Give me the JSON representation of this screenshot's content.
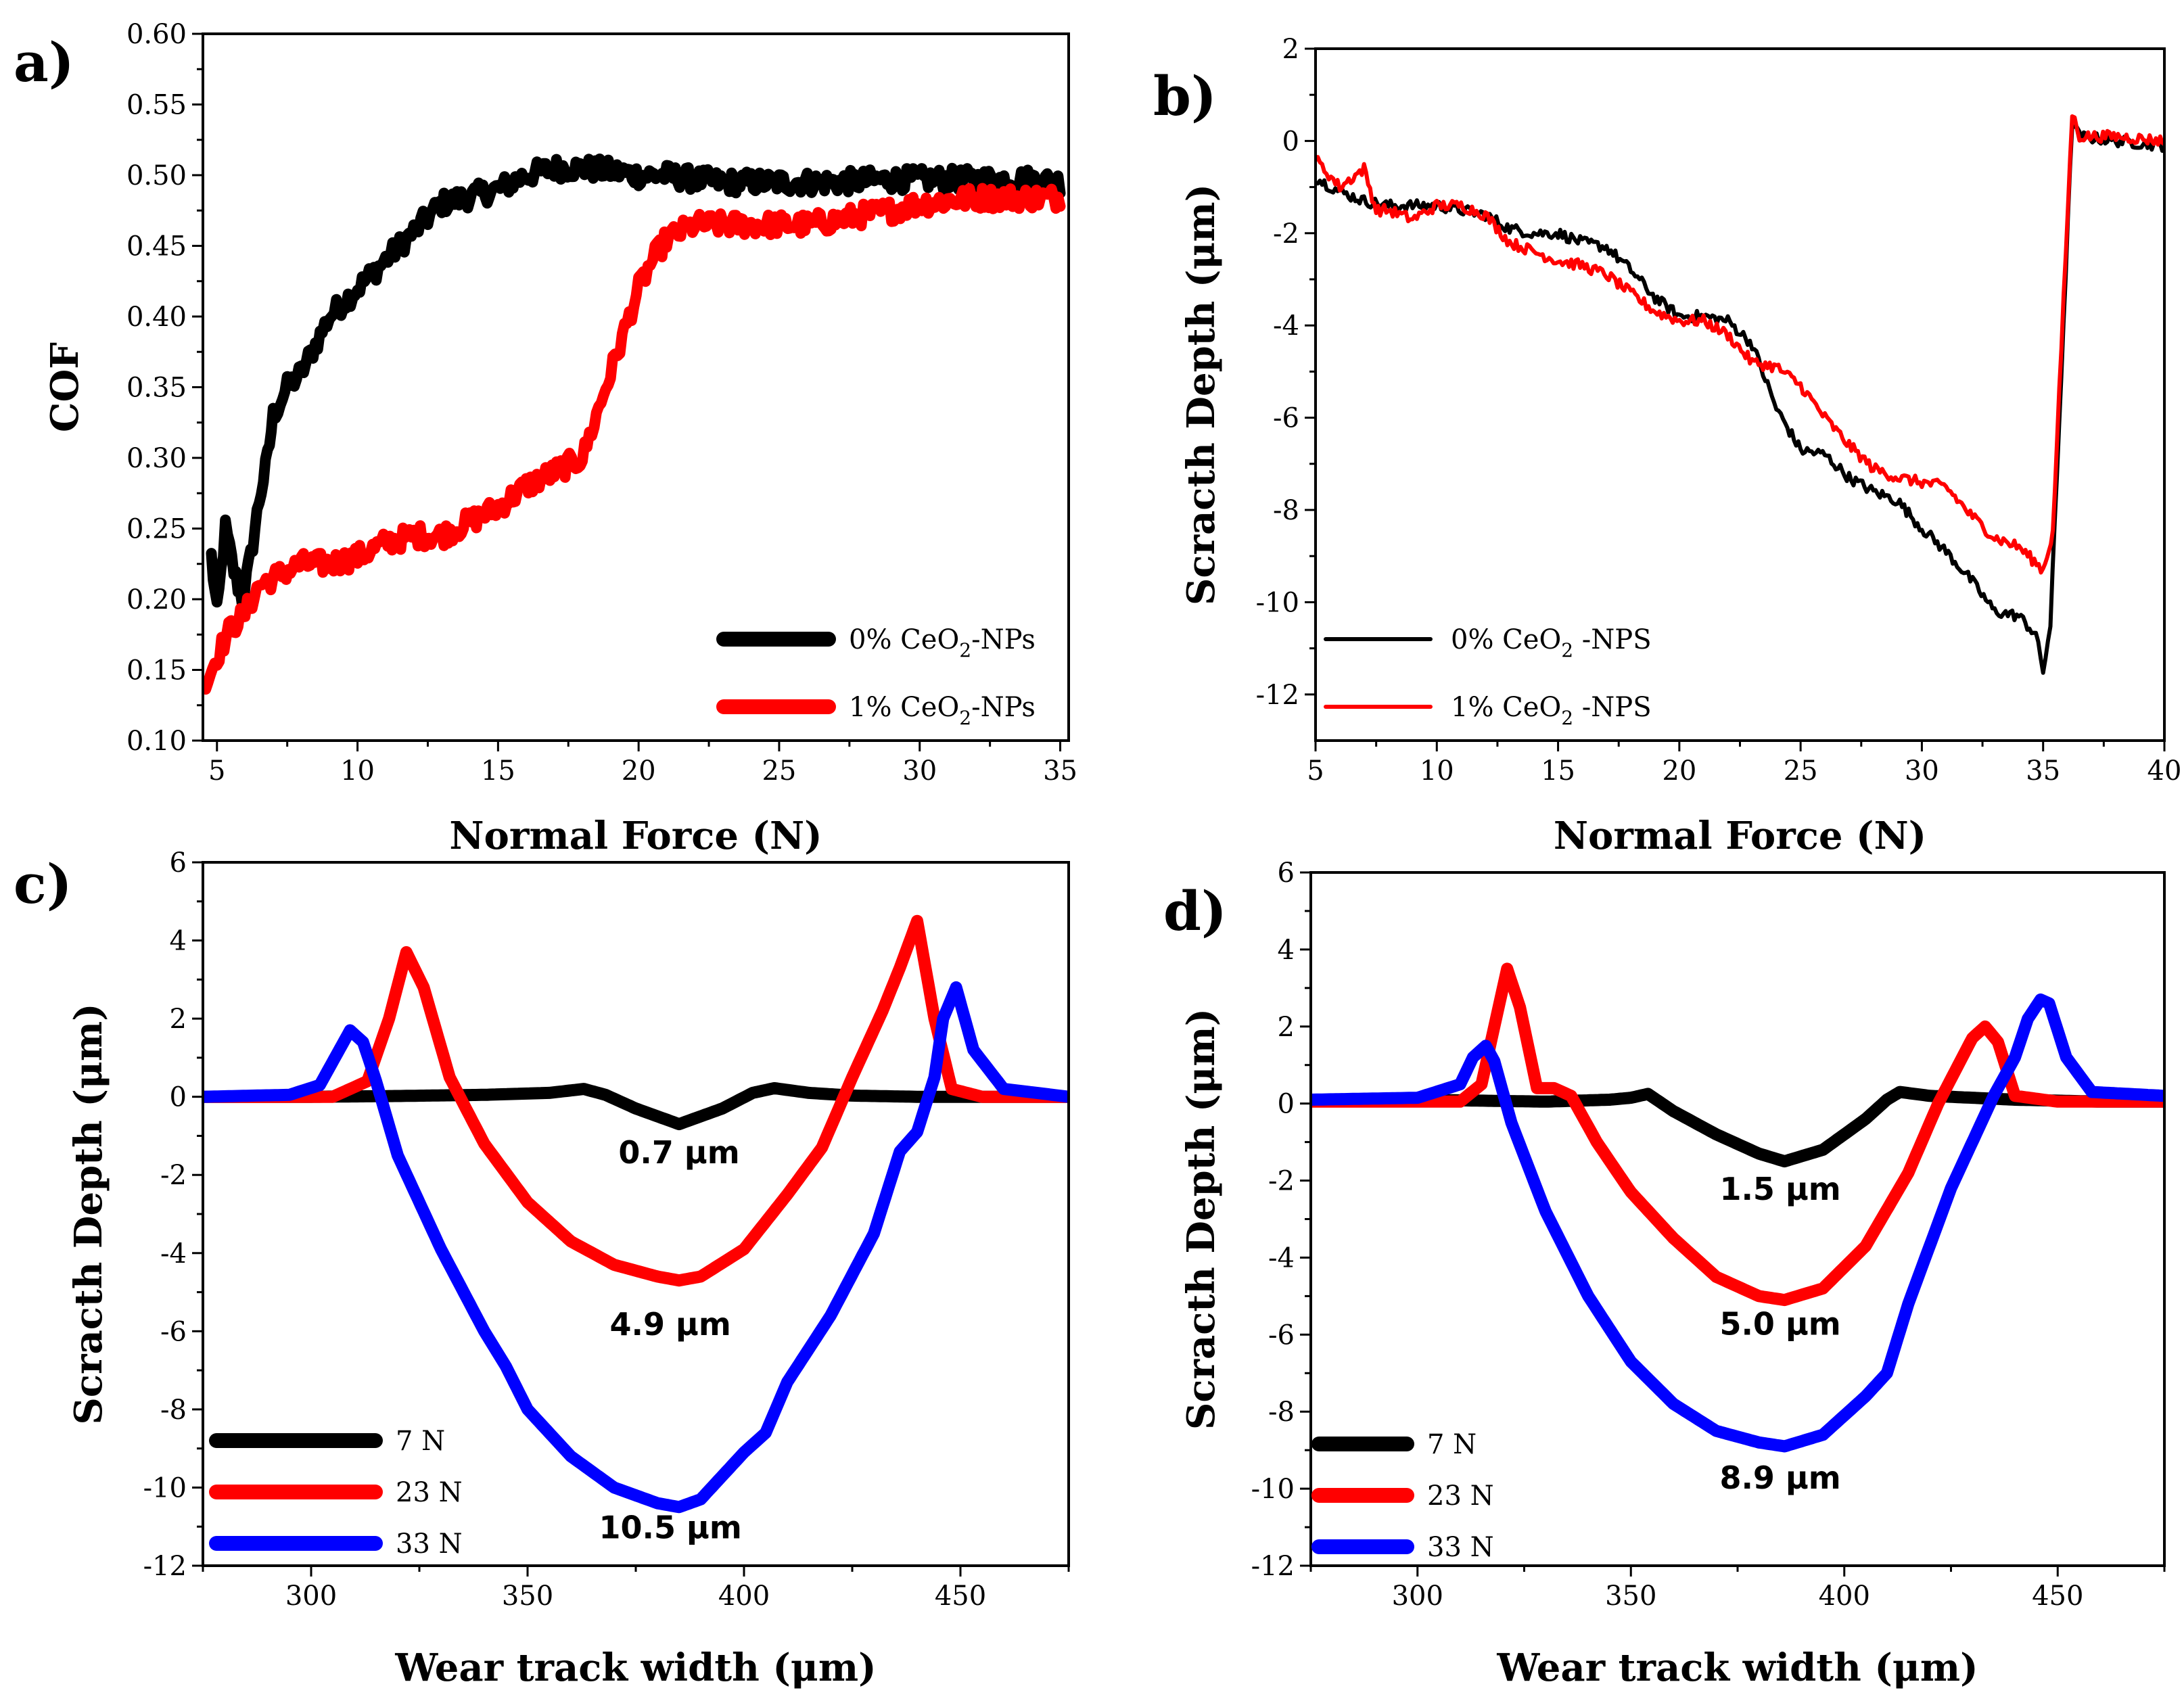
{
  "chart_data": [
    {
      "panel": "a)",
      "type": "line",
      "xlabel": "Normal Force (N)",
      "ylabel": "COF",
      "xlim": [
        4.5,
        35.3
      ],
      "ylim": [
        0.1,
        0.6
      ],
      "xticks": [
        5,
        10,
        15,
        20,
        25,
        30,
        35
      ],
      "yticks": [
        0.1,
        0.15,
        0.2,
        0.25,
        0.3,
        0.35,
        0.4,
        0.45,
        0.5,
        0.55,
        0.6
      ],
      "ytick_decimals": 2,
      "line_width": 16,
      "noise": 0.008,
      "legend": {
        "position": "bottom-right"
      },
      "series": [
        {
          "name": "0% CeO2-NPs",
          "name_parts": [
            "0% CeO",
            "2",
            "-NPs"
          ],
          "color": "#000000",
          "x": [
            4.8,
            5.0,
            5.3,
            5.6,
            5.9,
            6.2,
            6.5,
            6.8,
            7.0,
            7.5,
            8.0,
            8.5,
            9.0,
            9.5,
            10.0,
            10.5,
            11.0,
            11.5,
            12.0,
            12.5,
            13.0,
            14.0,
            15.0,
            16.0,
            17.0,
            18.0,
            19.0,
            20.0,
            21.0,
            22.0,
            23.0,
            24.0,
            25.0,
            26.0,
            27.0,
            28.0,
            29.0,
            30.0,
            31.0,
            32.0,
            33.0,
            34.0,
            35.0
          ],
          "y": [
            0.23,
            0.19,
            0.25,
            0.22,
            0.2,
            0.23,
            0.27,
            0.3,
            0.33,
            0.35,
            0.36,
            0.38,
            0.4,
            0.41,
            0.42,
            0.43,
            0.44,
            0.45,
            0.46,
            0.47,
            0.48,
            0.485,
            0.49,
            0.5,
            0.505,
            0.505,
            0.503,
            0.5,
            0.5,
            0.497,
            0.495,
            0.495,
            0.495,
            0.495,
            0.495,
            0.496,
            0.497,
            0.497,
            0.497,
            0.497,
            0.497,
            0.497,
            0.495
          ]
        },
        {
          "name": "1% CeO2-NPs",
          "name_parts": [
            "1% CeO",
            "2",
            "-NPs"
          ],
          "color": "#ff0000",
          "x": [
            4.6,
            5.0,
            5.5,
            6.0,
            6.5,
            7.0,
            8.0,
            9.0,
            10.0,
            11.0,
            12.0,
            13.0,
            14.0,
            15.0,
            16.0,
            17.0,
            18.0,
            18.5,
            19.0,
            19.5,
            20.0,
            20.5,
            21.0,
            21.5,
            22.0,
            22.5,
            23.0,
            24.0,
            25.0,
            26.0,
            27.0,
            28.0,
            29.0,
            30.0,
            31.0,
            32.0,
            33.0,
            34.0,
            35.0
          ],
          "y": [
            0.14,
            0.16,
            0.18,
            0.19,
            0.21,
            0.215,
            0.225,
            0.225,
            0.23,
            0.24,
            0.245,
            0.245,
            0.255,
            0.265,
            0.28,
            0.29,
            0.3,
            0.33,
            0.36,
            0.39,
            0.42,
            0.44,
            0.455,
            0.46,
            0.465,
            0.465,
            0.465,
            0.465,
            0.465,
            0.465,
            0.468,
            0.472,
            0.475,
            0.48,
            0.482,
            0.484,
            0.484,
            0.484,
            0.484
          ]
        }
      ]
    },
    {
      "panel": "b)",
      "type": "line",
      "xlabel": "Normal Force (N)",
      "ylabel": "Scracth Depth  (μm)",
      "xlim": [
        5,
        40
      ],
      "ylim": [
        -13,
        2
      ],
      "xticks": [
        5,
        10,
        15,
        20,
        25,
        30,
        35,
        40
      ],
      "yticks": [
        -12,
        -10,
        -8,
        -6,
        -4,
        -2,
        0,
        2
      ],
      "ytick_decimals": 0,
      "line_width": 6,
      "noise": 0.12,
      "legend": {
        "position": "bottom-left"
      },
      "series": [
        {
          "name": "0% CeO2 -NPS",
          "name_parts": [
            "0% CeO",
            "2",
            " -NPS"
          ],
          "color": "#000000",
          "x": [
            5.0,
            6.0,
            7.0,
            8.0,
            9.0,
            10.0,
            11.0,
            12.0,
            13.0,
            14.0,
            15.0,
            16.0,
            17.0,
            18.0,
            19.0,
            20.0,
            21.0,
            22.0,
            23.0,
            24.0,
            25.0,
            26.0,
            27.0,
            28.0,
            29.0,
            30.0,
            31.0,
            32.0,
            33.0,
            34.0,
            34.7,
            35.0,
            35.3,
            36.2,
            36.5,
            38.0,
            40.0
          ],
          "y": [
            -0.8,
            -1.1,
            -1.3,
            -1.4,
            -1.4,
            -1.4,
            -1.5,
            -1.6,
            -1.9,
            -2.0,
            -2.0,
            -2.2,
            -2.3,
            -2.8,
            -3.4,
            -3.8,
            -3.8,
            -3.9,
            -4.4,
            -5.8,
            -6.7,
            -6.8,
            -7.3,
            -7.6,
            -7.8,
            -8.4,
            -8.9,
            -9.5,
            -10.2,
            -10.3,
            -10.7,
            -11.5,
            -10.5,
            0.4,
            0.1,
            0.0,
            -0.1
          ]
        },
        {
          "name": "1% CeO2 -NPS",
          "name_parts": [
            "1% CeO",
            "2",
            " -NPS"
          ],
          "color": "#ff0000",
          "x": [
            5.0,
            6.0,
            7.0,
            7.5,
            8.0,
            9.0,
            10.0,
            11.0,
            12.0,
            13.0,
            14.0,
            15.0,
            16.0,
            17.0,
            18.0,
            19.0,
            20.0,
            21.0,
            22.0,
            23.0,
            24.0,
            25.0,
            26.0,
            27.0,
            28.0,
            29.0,
            30.0,
            31.0,
            32.0,
            33.0,
            34.0,
            35.0,
            35.4,
            36.2,
            36.5,
            38.0,
            40.0
          ],
          "y": [
            -0.4,
            -1.0,
            -0.6,
            -1.5,
            -1.5,
            -1.7,
            -1.4,
            -1.4,
            -1.6,
            -2.2,
            -2.4,
            -2.6,
            -2.7,
            -2.9,
            -3.3,
            -3.7,
            -3.9,
            -3.9,
            -4.2,
            -4.8,
            -4.9,
            -5.3,
            -6.0,
            -6.6,
            -7.1,
            -7.3,
            -7.4,
            -7.5,
            -8.1,
            -8.6,
            -8.8,
            -9.3,
            -8.5,
            0.6,
            0.1,
            0.1,
            0.0
          ]
        }
      ]
    },
    {
      "panel": "c)",
      "type": "line",
      "xlabel": "Wear track width (μm)",
      "ylabel": "Scracth Depth  (μm)",
      "xlim": [
        275,
        475
      ],
      "ylim": [
        -12,
        6
      ],
      "xticks": [
        300,
        350,
        400,
        450
      ],
      "yticks": [
        -12,
        -10,
        -8,
        -6,
        -4,
        -2,
        0,
        2,
        4,
        6
      ],
      "ytick_decimals": 0,
      "line_width": 18,
      "noise": 0,
      "legend": {
        "position": "bottom-left"
      },
      "annotations": [
        {
          "text": "0.7 μm",
          "x": 385,
          "y": -1.7
        },
        {
          "text": "4.9 μm",
          "x": 383,
          "y": -6.1
        },
        {
          "text": "10.5 μm",
          "x": 383,
          "y": -11.3
        }
      ],
      "series": [
        {
          "name": "7 N",
          "color": "#000000",
          "x": [
            275,
            300,
            320,
            340,
            355,
            363,
            368,
            375,
            385,
            395,
            402,
            407,
            415,
            425,
            440,
            460,
            475
          ],
          "y": [
            0,
            0,
            0.02,
            0.05,
            0.1,
            0.2,
            0.05,
            -0.3,
            -0.7,
            -0.3,
            0.1,
            0.22,
            0.1,
            0.03,
            0,
            0,
            0
          ]
        },
        {
          "name": "23 N",
          "color": "#ff0000",
          "x": [
            275,
            305,
            313,
            318,
            322,
            326,
            332,
            340,
            350,
            360,
            370,
            380,
            385,
            390,
            400,
            410,
            418,
            425,
            432,
            436,
            440,
            444,
            448,
            455,
            475
          ],
          "y": [
            0,
            0,
            0.4,
            2.0,
            3.7,
            2.8,
            0.5,
            -1.2,
            -2.7,
            -3.7,
            -4.3,
            -4.6,
            -4.7,
            -4.6,
            -3.9,
            -2.5,
            -1.3,
            0.5,
            2.2,
            3.3,
            4.5,
            2.0,
            0.2,
            0,
            0
          ]
        },
        {
          "name": "33 N",
          "color": "#0000ff",
          "x": [
            275,
            295,
            302,
            306,
            309,
            312,
            315,
            320,
            330,
            340,
            345,
            350,
            360,
            370,
            380,
            385,
            390,
            400,
            405,
            410,
            420,
            430,
            436,
            440,
            444,
            446,
            449,
            453,
            460,
            475
          ],
          "y": [
            0,
            0.05,
            0.3,
            1.1,
            1.7,
            1.4,
            0.4,
            -1.5,
            -3.9,
            -6.0,
            -6.9,
            -8.0,
            -9.2,
            -10.0,
            -10.4,
            -10.5,
            -10.3,
            -9.1,
            -8.6,
            -7.3,
            -5.6,
            -3.5,
            -1.4,
            -0.9,
            0.5,
            2.0,
            2.8,
            1.2,
            0.2,
            0
          ]
        }
      ]
    },
    {
      "panel": "d)",
      "type": "line",
      "xlabel": "Wear track width (μm)",
      "ylabel": "Scracth Depth  (μm)",
      "xlim": [
        275,
        475
      ],
      "ylim": [
        -12,
        6
      ],
      "xticks": [
        300,
        350,
        400,
        450
      ],
      "yticks": [
        -12,
        -10,
        -8,
        -6,
        -4,
        -2,
        0,
        2,
        4,
        6
      ],
      "ytick_decimals": 0,
      "line_width": 18,
      "noise": 0,
      "legend": {
        "position": "bottom-left"
      },
      "annotations": [
        {
          "text": "1.5 μm",
          "x": 385,
          "y": -2.5
        },
        {
          "text": "5.0 μm",
          "x": 385,
          "y": -6.0
        },
        {
          "text": "8.9 μm",
          "x": 385,
          "y": -10.0
        }
      ],
      "series": [
        {
          "name": "7 N",
          "color": "#000000",
          "x": [
            275,
            300,
            330,
            345,
            350,
            354,
            360,
            370,
            380,
            386,
            395,
            405,
            410,
            413,
            420,
            440,
            460,
            475
          ],
          "y": [
            0.1,
            0.1,
            0.05,
            0.1,
            0.15,
            0.25,
            -0.2,
            -0.8,
            -1.3,
            -1.5,
            -1.2,
            -0.4,
            0.1,
            0.3,
            0.2,
            0.1,
            0.05,
            0.05
          ]
        },
        {
          "name": "23 N",
          "color": "#ff0000",
          "x": [
            275,
            310,
            315,
            318,
            321,
            324,
            328,
            332,
            336,
            342,
            350,
            360,
            370,
            380,
            386,
            395,
            405,
            415,
            422,
            430,
            433,
            436,
            440,
            450,
            475
          ],
          "y": [
            0.05,
            0.05,
            0.5,
            2.0,
            3.5,
            2.5,
            0.4,
            0.4,
            0.2,
            -1.0,
            -2.3,
            -3.5,
            -4.5,
            -5.0,
            -5.1,
            -4.8,
            -3.7,
            -1.8,
            0,
            1.7,
            2.0,
            1.6,
            0.2,
            0.05,
            0.05
          ]
        },
        {
          "name": "33 N",
          "color": "#0000ff",
          "x": [
            275,
            300,
            310,
            313,
            316,
            318,
            322,
            330,
            340,
            350,
            360,
            370,
            380,
            386,
            395,
            405,
            410,
            415,
            425,
            435,
            440,
            443,
            446,
            448,
            452,
            458,
            475
          ],
          "y": [
            0.1,
            0.15,
            0.5,
            1.2,
            1.5,
            1.1,
            -0.5,
            -2.8,
            -5.0,
            -6.7,
            -7.8,
            -8.5,
            -8.8,
            -8.9,
            -8.6,
            -7.6,
            -7.0,
            -5.2,
            -2.2,
            0.2,
            1.2,
            2.2,
            2.7,
            2.6,
            1.2,
            0.3,
            0.2
          ]
        }
      ]
    }
  ]
}
